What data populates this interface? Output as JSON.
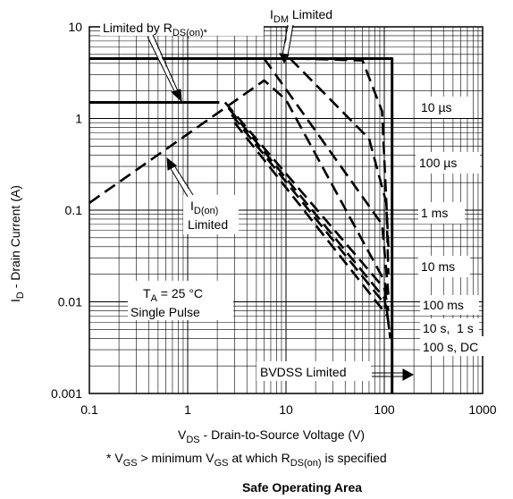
{
  "chart_data": {
    "type": "line",
    "title": "Safe Operating Area",
    "xlabel": {
      "pre": "V",
      "sub": "DS",
      "post": " - Drain-to-Source Voltage (V)"
    },
    "ylabel": {
      "pre": "I",
      "sub": "D",
      "post": " - Drain Current (A)"
    },
    "footnote": {
      "a": "* V",
      "b": "GS",
      "c": " > minimum V",
      "d": "GS",
      "e": " at which R",
      "f": "DS(on)",
      "g": " is specified"
    },
    "xscale": "log",
    "yscale": "log",
    "xlim": [
      0.1,
      1000
    ],
    "ylim": [
      0.001,
      10
    ],
    "xticks": [
      0.1,
      1,
      10,
      100,
      1000
    ],
    "xtick_labels": [
      "0.1",
      "1",
      "10",
      "100",
      "1000"
    ],
    "yticks": [
      0.001,
      0.01,
      0.1,
      1,
      10
    ],
    "ytick_labels": [
      "0.001",
      "0.01",
      "0.1",
      "1",
      "10"
    ],
    "grid": true,
    "series": [
      {
        "name": "Limited by RDS(on)",
        "style": "solid",
        "x": [
          0.1,
          2.1
        ],
        "y": [
          1.5,
          1.5
        ]
      },
      {
        "name": "IDM Limited",
        "style": "solid",
        "x": [
          0.1,
          120,
          120
        ],
        "y": [
          4.5,
          4.5,
          0.001
        ]
      },
      {
        "name": "ID(on) Limited",
        "style": "dashed",
        "x": [
          0.1,
          6,
          10,
          100,
          110
        ],
        "y": [
          0.12,
          2.6,
          1.6,
          0.017,
          0.01
        ]
      },
      {
        "name": "10 µs",
        "style": "dashed",
        "x": [
          13,
          60,
          95,
          110
        ],
        "y": [
          4.5,
          4.3,
          1.2,
          0.04
        ]
      },
      {
        "name": "100 µs",
        "style": "dashed",
        "x": [
          11,
          70,
          105,
          110
        ],
        "y": [
          4.5,
          0.6,
          0.12,
          0.02
        ]
      },
      {
        "name": "1 ms",
        "style": "dashed",
        "x": [
          6,
          95,
          110
        ],
        "y": [
          4.5,
          0.07,
          0.012
        ]
      },
      {
        "name": "10 ms",
        "style": "dashed",
        "x": [
          2.4,
          100,
          110
        ],
        "y": [
          1.5,
          0.014,
          0.008
        ]
      },
      {
        "name": "100 ms",
        "style": "dashed",
        "x": [
          2.6,
          100,
          110
        ],
        "y": [
          1.3,
          0.011,
          0.006
        ]
      },
      {
        "name": "10 s, 1 s",
        "style": "dashed",
        "x": [
          2.8,
          105,
          112
        ],
        "y": [
          1.1,
          0.009,
          0.005
        ]
      },
      {
        "name": "100 s, DC",
        "style": "dashed",
        "x": [
          3.0,
          108,
          115
        ],
        "y": [
          0.9,
          0.007,
          0.004
        ]
      }
    ],
    "annotations": {
      "rds_on": {
        "pre": "Limited by R",
        "sub": "DS(on)*"
      },
      "idm": {
        "pre": "I",
        "sub": "DM",
        "post": " Limited"
      },
      "id_on": {
        "pre": "I",
        "sub": "D(on)",
        "line2": "Limited"
      },
      "temp": {
        "pre": "T",
        "sub": "A",
        "post": " = 25 °C"
      },
      "pulse": "Single Pulse",
      "bvdss": "BVDSS Limited",
      "c10us": "10 µs",
      "c100us": "100 µs",
      "c1ms": "1 ms",
      "c10ms": "10 ms",
      "c100ms": "100 ms",
      "c10s": "10 s,  1 s",
      "c100s": "100 s, DC"
    }
  }
}
